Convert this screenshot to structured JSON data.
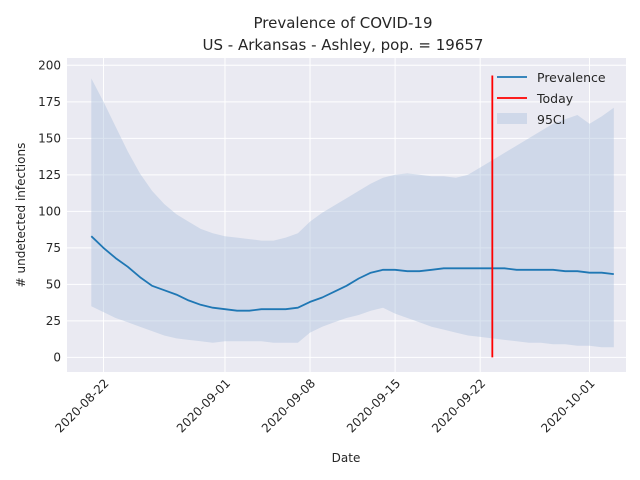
{
  "chart_data": {
    "type": "line",
    "title_line1": "Prevalence of COVID-19",
    "title_line2": "US - Arkansas - Ashley, pop. = 19657",
    "xlabel": "Date",
    "ylabel": "# undetected infections",
    "ylim": [
      -10,
      205
    ],
    "xlim": [
      "2020-08-19",
      "2020-10-04"
    ],
    "y_ticks": [
      0,
      25,
      50,
      75,
      100,
      125,
      150,
      175,
      200
    ],
    "x_ticks": [
      "2020-08-22",
      "2020-09-01",
      "2020-09-08",
      "2020-09-15",
      "2020-09-22",
      "2020-10-01"
    ],
    "grid": true,
    "legend_position": "top-right",
    "colors": {
      "prevalence": "#1f77b4",
      "today": "#ff0000",
      "ci": "#b0c4de",
      "plot_bg": "#eaeaf2",
      "grid": "#ffffff"
    },
    "series": [
      {
        "name": "Prevalence",
        "x": [
          "2020-08-21",
          "2020-08-22",
          "2020-08-23",
          "2020-08-24",
          "2020-08-25",
          "2020-08-26",
          "2020-08-27",
          "2020-08-28",
          "2020-08-29",
          "2020-08-30",
          "2020-08-31",
          "2020-09-01",
          "2020-09-02",
          "2020-09-03",
          "2020-09-04",
          "2020-09-05",
          "2020-09-06",
          "2020-09-07",
          "2020-09-08",
          "2020-09-09",
          "2020-09-10",
          "2020-09-11",
          "2020-09-12",
          "2020-09-13",
          "2020-09-14",
          "2020-09-15",
          "2020-09-16",
          "2020-09-17",
          "2020-09-18",
          "2020-09-19",
          "2020-09-20",
          "2020-09-21",
          "2020-09-22",
          "2020-09-23",
          "2020-09-24",
          "2020-09-25",
          "2020-09-26",
          "2020-09-27",
          "2020-09-28",
          "2020-09-29",
          "2020-09-30",
          "2020-10-01",
          "2020-10-02",
          "2020-10-03"
        ],
        "values": [
          83,
          75,
          68,
          62,
          55,
          49,
          46,
          43,
          39,
          36,
          34,
          33,
          32,
          32,
          33,
          33,
          33,
          34,
          38,
          41,
          45,
          49,
          54,
          58,
          60,
          60,
          59,
          59,
          60,
          61,
          61,
          61,
          61,
          61,
          61,
          60,
          60,
          60,
          60,
          59,
          59,
          58,
          58,
          57
        ]
      },
      {
        "name": "95CI",
        "x": [
          "2020-08-21",
          "2020-08-22",
          "2020-08-23",
          "2020-08-24",
          "2020-08-25",
          "2020-08-26",
          "2020-08-27",
          "2020-08-28",
          "2020-08-29",
          "2020-08-30",
          "2020-08-31",
          "2020-09-01",
          "2020-09-02",
          "2020-09-03",
          "2020-09-04",
          "2020-09-05",
          "2020-09-06",
          "2020-09-07",
          "2020-09-08",
          "2020-09-09",
          "2020-09-10",
          "2020-09-11",
          "2020-09-12",
          "2020-09-13",
          "2020-09-14",
          "2020-09-15",
          "2020-09-16",
          "2020-09-17",
          "2020-09-18",
          "2020-09-19",
          "2020-09-20",
          "2020-09-21",
          "2020-09-22",
          "2020-09-23",
          "2020-09-24",
          "2020-09-25",
          "2020-09-26",
          "2020-09-27",
          "2020-09-28",
          "2020-09-29",
          "2020-09-30",
          "2020-10-01",
          "2020-10-02",
          "2020-10-03"
        ],
        "lower": [
          35,
          31,
          27,
          24,
          21,
          18,
          15,
          13,
          12,
          11,
          10,
          11,
          11,
          11,
          11,
          10,
          10,
          10,
          17,
          21,
          24,
          27,
          29,
          32,
          34,
          30,
          27,
          24,
          21,
          19,
          17,
          15,
          14,
          13,
          12,
          11,
          10,
          10,
          9,
          9,
          8,
          8,
          7,
          7
        ],
        "upper": [
          191,
          175,
          158,
          141,
          126,
          114,
          105,
          98,
          93,
          88,
          85,
          83,
          82,
          81,
          80,
          80,
          82,
          85,
          93,
          99,
          104,
          109,
          114,
          119,
          123,
          125,
          126,
          125,
          124,
          124,
          123,
          125,
          130,
          135,
          140,
          145,
          150,
          155,
          160,
          163,
          166,
          160,
          165,
          171
        ]
      }
    ],
    "today": {
      "name": "Today",
      "date": "2020-09-23",
      "y_range": [
        0,
        193
      ]
    }
  }
}
